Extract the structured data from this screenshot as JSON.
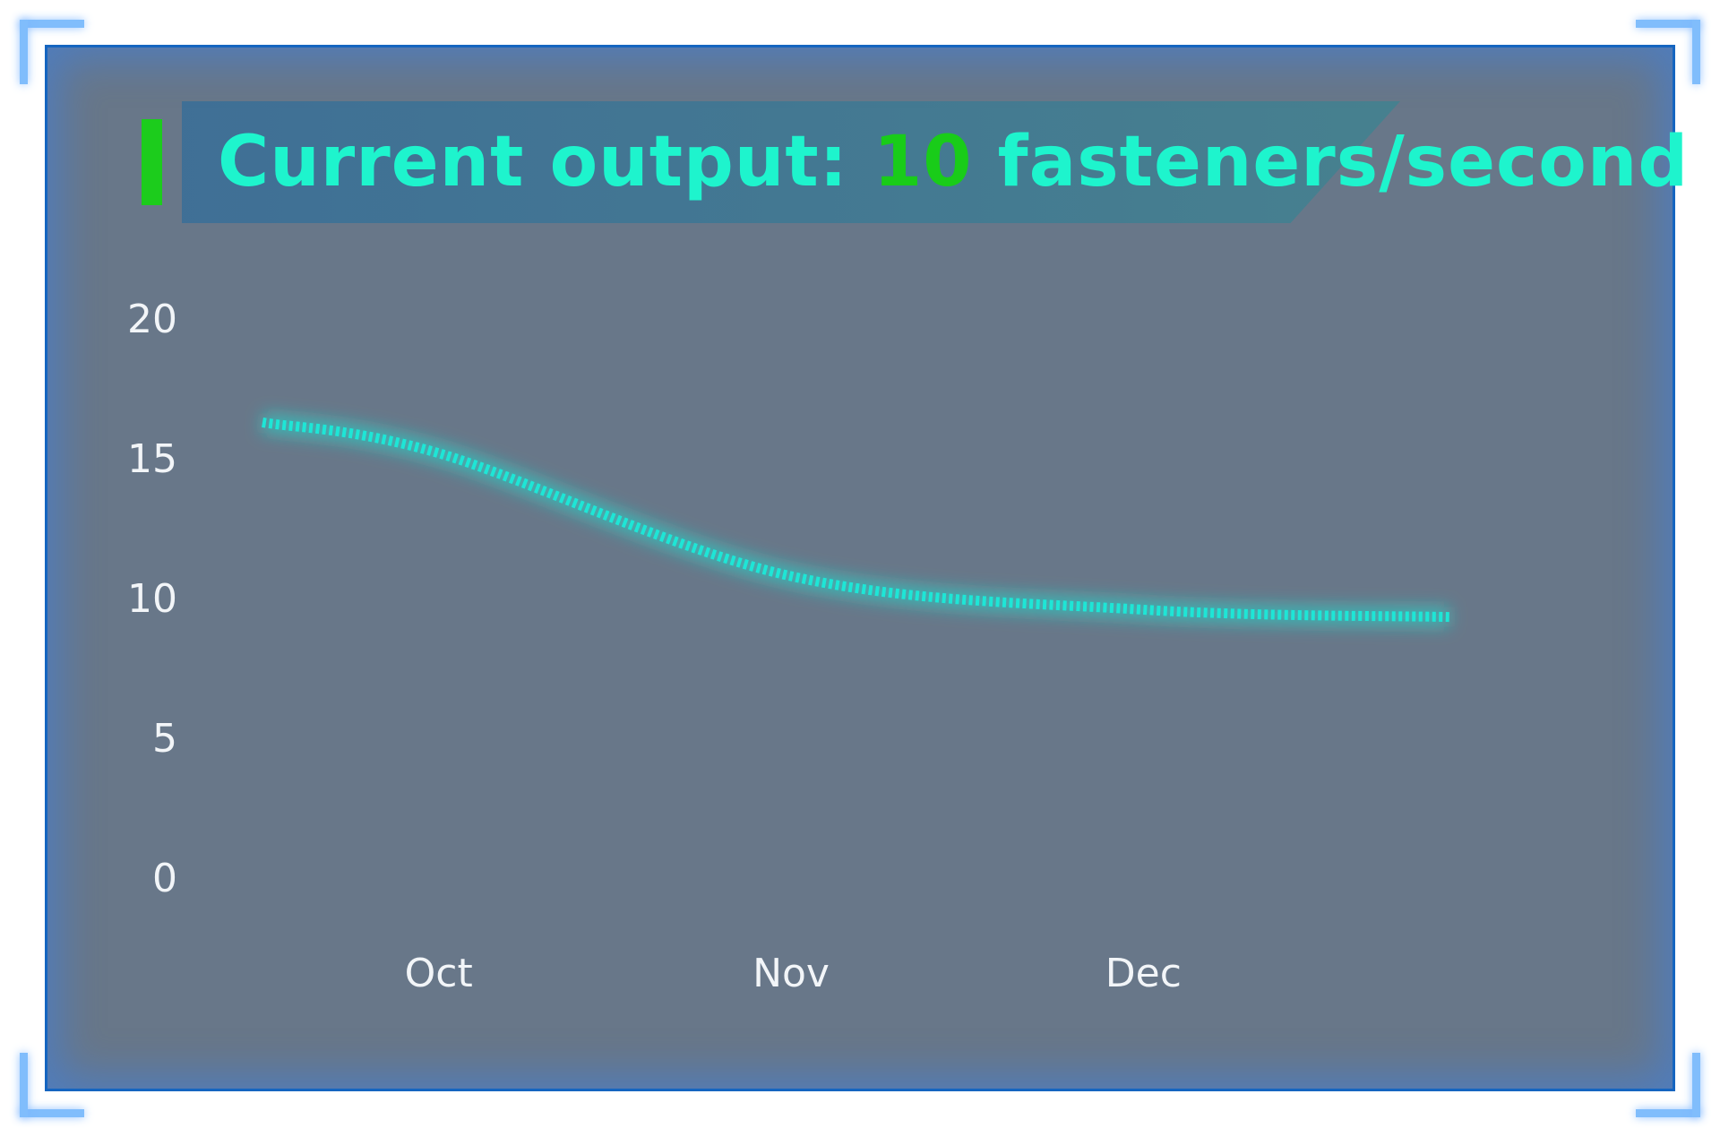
{
  "title": {
    "prefix": "Current output: ",
    "value": "10",
    "suffix": " fasteners/second"
  },
  "colors": {
    "line": "#1ee6d6",
    "title_text": "#1ef4cd",
    "title_value": "#19cc19",
    "accent_bar": "#1ccc1c",
    "panel_background": "#687789",
    "frame_border": "#1565c0"
  },
  "chart_data": {
    "type": "line",
    "categories": [
      "Oct",
      "Nov",
      "Dec"
    ],
    "yticks": [
      "0",
      "5",
      "10",
      "15",
      "20"
    ],
    "ylim": [
      0,
      20
    ],
    "grid": false,
    "line_style": "dashed-glow",
    "series": [
      {
        "values": [
          15.2,
          10.8,
          9.6
        ]
      }
    ]
  }
}
